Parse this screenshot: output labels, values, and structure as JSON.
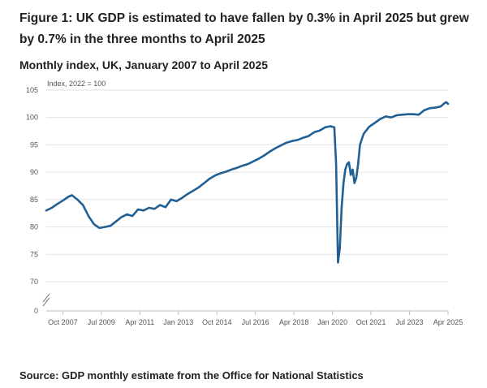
{
  "header": {
    "title": "Figure 1: UK GDP is estimated to have fallen by 0.3% in April 2025 but grew by 0.7% in the three months to April 2025",
    "subtitle": "Monthly index, UK, January 2007 to April 2025"
  },
  "footer": {
    "source": "Source: GDP monthly estimate from the Office for National Statistics"
  },
  "chart_data": {
    "type": "line",
    "ylabel": "Index, 2022 = 100",
    "x_ticks": [
      "Oct 2007",
      "Jul 2009",
      "Apr 2011",
      "Jan 2013",
      "Oct 2014",
      "Jul 2016",
      "Apr 2018",
      "Jan 2020",
      "Oct 2021",
      "Jul 2023",
      "Apr 2025"
    ],
    "y_ticks": [
      0,
      70,
      75,
      80,
      85,
      90,
      95,
      100,
      105
    ],
    "ylim": [
      0,
      105
    ],
    "axis_break": true,
    "grid": true,
    "line_color": "#206095",
    "series": [
      {
        "points": [
          [
            "2007-01",
            83.0
          ],
          [
            "2007-04",
            83.5
          ],
          [
            "2007-07",
            84.2
          ],
          [
            "2007-10",
            84.8
          ],
          [
            "2008-01",
            85.5
          ],
          [
            "2008-03",
            85.8
          ],
          [
            "2008-06",
            85.0
          ],
          [
            "2008-09",
            84.0
          ],
          [
            "2008-12",
            82.0
          ],
          [
            "2009-03",
            80.5
          ],
          [
            "2009-06",
            79.8
          ],
          [
            "2009-09",
            80.0
          ],
          [
            "2009-12",
            80.2
          ],
          [
            "2010-03",
            81.0
          ],
          [
            "2010-06",
            81.8
          ],
          [
            "2010-09",
            82.3
          ],
          [
            "2010-12",
            82.0
          ],
          [
            "2011-03",
            83.2
          ],
          [
            "2011-06",
            83.0
          ],
          [
            "2011-09",
            83.5
          ],
          [
            "2011-12",
            83.3
          ],
          [
            "2012-03",
            84.0
          ],
          [
            "2012-06",
            83.6
          ],
          [
            "2012-09",
            85.0
          ],
          [
            "2012-12",
            84.7
          ],
          [
            "2013-03",
            85.3
          ],
          [
            "2013-06",
            86.0
          ],
          [
            "2013-09",
            86.6
          ],
          [
            "2013-12",
            87.2
          ],
          [
            "2014-03",
            88.0
          ],
          [
            "2014-06",
            88.8
          ],
          [
            "2014-09",
            89.4
          ],
          [
            "2014-12",
            89.8
          ],
          [
            "2015-03",
            90.1
          ],
          [
            "2015-06",
            90.5
          ],
          [
            "2015-09",
            90.8
          ],
          [
            "2015-12",
            91.2
          ],
          [
            "2016-03",
            91.5
          ],
          [
            "2016-06",
            92.0
          ],
          [
            "2016-09",
            92.5
          ],
          [
            "2016-12",
            93.1
          ],
          [
            "2017-03",
            93.8
          ],
          [
            "2017-06",
            94.4
          ],
          [
            "2017-09",
            94.9
          ],
          [
            "2017-12",
            95.4
          ],
          [
            "2018-03",
            95.7
          ],
          [
            "2018-06",
            95.9
          ],
          [
            "2018-09",
            96.3
          ],
          [
            "2018-12",
            96.6
          ],
          [
            "2019-03",
            97.3
          ],
          [
            "2019-06",
            97.6
          ],
          [
            "2019-09",
            98.2
          ],
          [
            "2019-12",
            98.4
          ],
          [
            "2020-02",
            98.2
          ],
          [
            "2020-03",
            91.5
          ],
          [
            "2020-04",
            73.5
          ],
          [
            "2020-05",
            76.0
          ],
          [
            "2020-06",
            83.5
          ],
          [
            "2020-07",
            88.0
          ],
          [
            "2020-08",
            90.5
          ],
          [
            "2020-09",
            91.5
          ],
          [
            "2020-10",
            91.8
          ],
          [
            "2020-11",
            89.5
          ],
          [
            "2020-12",
            90.5
          ],
          [
            "2021-01",
            88.0
          ],
          [
            "2021-02",
            89.0
          ],
          [
            "2021-03",
            91.5
          ],
          [
            "2021-04",
            95.0
          ],
          [
            "2021-06",
            97.0
          ],
          [
            "2021-09",
            98.3
          ],
          [
            "2021-12",
            99.0
          ],
          [
            "2022-03",
            99.7
          ],
          [
            "2022-06",
            100.2
          ],
          [
            "2022-09",
            100.0
          ],
          [
            "2022-12",
            100.4
          ],
          [
            "2023-03",
            100.5
          ],
          [
            "2023-06",
            100.6
          ],
          [
            "2023-09",
            100.6
          ],
          [
            "2023-12",
            100.5
          ],
          [
            "2024-03",
            101.3
          ],
          [
            "2024-06",
            101.7
          ],
          [
            "2024-09",
            101.8
          ],
          [
            "2024-12",
            102.0
          ],
          [
            "2025-02",
            102.6
          ],
          [
            "2025-03",
            102.8
          ],
          [
            "2025-04",
            102.5
          ]
        ]
      }
    ]
  }
}
